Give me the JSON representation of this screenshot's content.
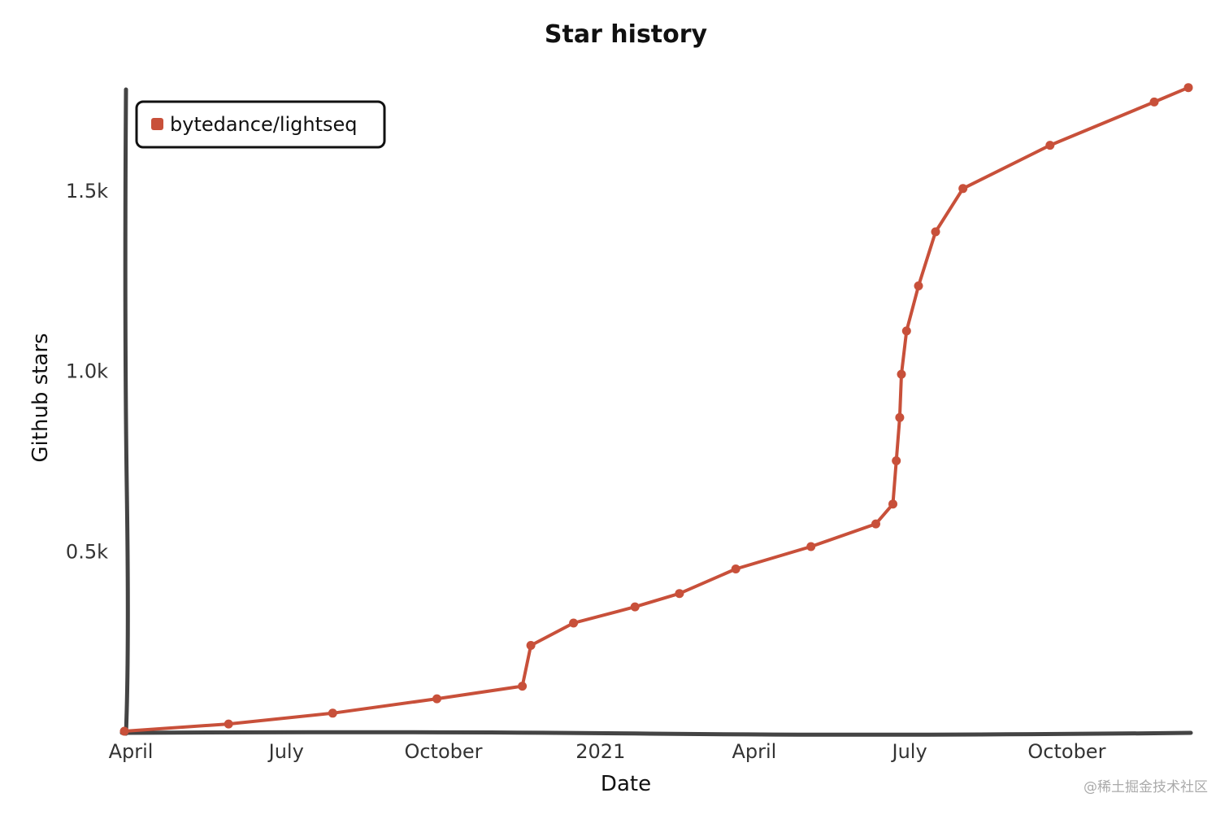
{
  "chart_data": {
    "type": "line",
    "title": "Star history",
    "xlabel": "Date",
    "ylabel": "Github stars",
    "ylim": [
      0,
      1900
    ],
    "xlim": [
      "2020-04-01",
      "2021-12-15"
    ],
    "x_ticks": [
      {
        "date": "2020-04-01",
        "label": "April"
      },
      {
        "date": "2020-07-01",
        "label": "July"
      },
      {
        "date": "2020-10-01",
        "label": "October"
      },
      {
        "date": "2021-01-01",
        "label": "2021"
      },
      {
        "date": "2021-04-01",
        "label": "April"
      },
      {
        "date": "2021-07-01",
        "label": "July"
      },
      {
        "date": "2021-10-01",
        "label": "October"
      }
    ],
    "y_ticks": [
      {
        "value": 500,
        "label": "0.5k"
      },
      {
        "value": 1000,
        "label": "1.0k"
      },
      {
        "value": 1500,
        "label": "1.5k"
      }
    ],
    "legend_position": "top-left",
    "grid": false,
    "series": [
      {
        "name": "bytedance/lightseq",
        "color": "#c8503a",
        "points": [
          {
            "x": "2020-04-01",
            "y": 0
          },
          {
            "x": "2020-06-01",
            "y": 20
          },
          {
            "x": "2020-08-01",
            "y": 50
          },
          {
            "x": "2020-10-01",
            "y": 90
          },
          {
            "x": "2020-11-20",
            "y": 125
          },
          {
            "x": "2020-11-25",
            "y": 238
          },
          {
            "x": "2020-12-20",
            "y": 300
          },
          {
            "x": "2021-01-25",
            "y": 345
          },
          {
            "x": "2021-02-20",
            "y": 382
          },
          {
            "x": "2021-03-25",
            "y": 450
          },
          {
            "x": "2021-05-08",
            "y": 512
          },
          {
            "x": "2021-06-15",
            "y": 575
          },
          {
            "x": "2021-06-25",
            "y": 630
          },
          {
            "x": "2021-06-27",
            "y": 750
          },
          {
            "x": "2021-06-29",
            "y": 870
          },
          {
            "x": "2021-06-30",
            "y": 990
          },
          {
            "x": "2021-07-03",
            "y": 1110
          },
          {
            "x": "2021-07-10",
            "y": 1235
          },
          {
            "x": "2021-07-20",
            "y": 1385
          },
          {
            "x": "2021-08-05",
            "y": 1505
          },
          {
            "x": "2021-09-25",
            "y": 1625
          },
          {
            "x": "2021-11-25",
            "y": 1745
          },
          {
            "x": "2021-12-15",
            "y": 1785
          }
        ]
      }
    ]
  },
  "watermark": "@稀土掘金技术社区"
}
